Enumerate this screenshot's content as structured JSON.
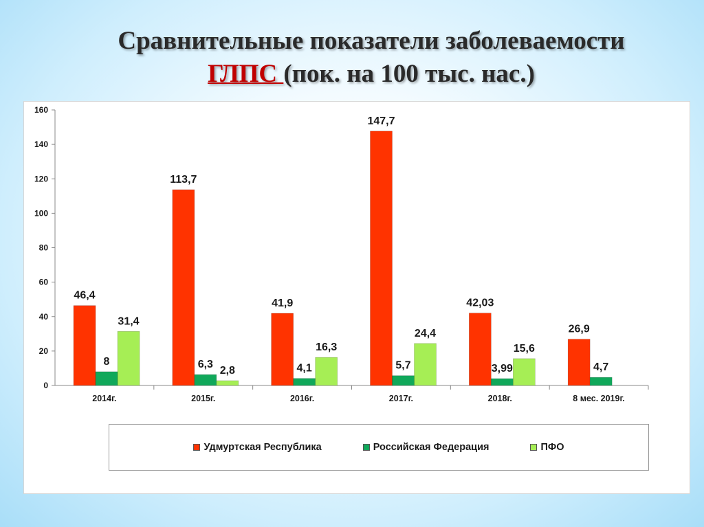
{
  "slide": {
    "title_line1": "Сравнительные показатели заболеваемости",
    "title_highlight": "ГЛПС ",
    "title_line2_rest": " (пок. на 100 тыс. нас.)"
  },
  "colors": {
    "udmurt": "#ff3300",
    "rf": "#10a85a",
    "pfo": "#a6ee55"
  },
  "chart_data": {
    "type": "bar",
    "categories": [
      "2014г.",
      "2015г.",
      "2016г.",
      "2017г.",
      "2018г.",
      "8 мес. 2019г."
    ],
    "series": [
      {
        "name": "Удмуртская Республика",
        "values": [
          46.4,
          113.7,
          41.9,
          147.7,
          42.03,
          26.9
        ],
        "labels": [
          "46,4",
          "113,7",
          "41,9",
          "147,7",
          "42,03",
          "26,9"
        ]
      },
      {
        "name": "Российская Федерация",
        "values": [
          8,
          6.3,
          4.1,
          5.7,
          3.99,
          4.7
        ],
        "labels": [
          "8",
          "6,3",
          "4,1",
          "5,7",
          "3,99",
          "4,7"
        ]
      },
      {
        "name": "ПФО",
        "values": [
          31.4,
          2.8,
          16.3,
          24.4,
          15.6,
          null
        ],
        "labels": [
          "31,4",
          "2,8",
          "16,3",
          "24,4",
          "15,6",
          ""
        ]
      }
    ],
    "ylim": [
      0,
      160
    ],
    "yticks": [
      0,
      20,
      40,
      60,
      80,
      100,
      120,
      140,
      160
    ],
    "legend_position": "bottom",
    "grid": false
  }
}
